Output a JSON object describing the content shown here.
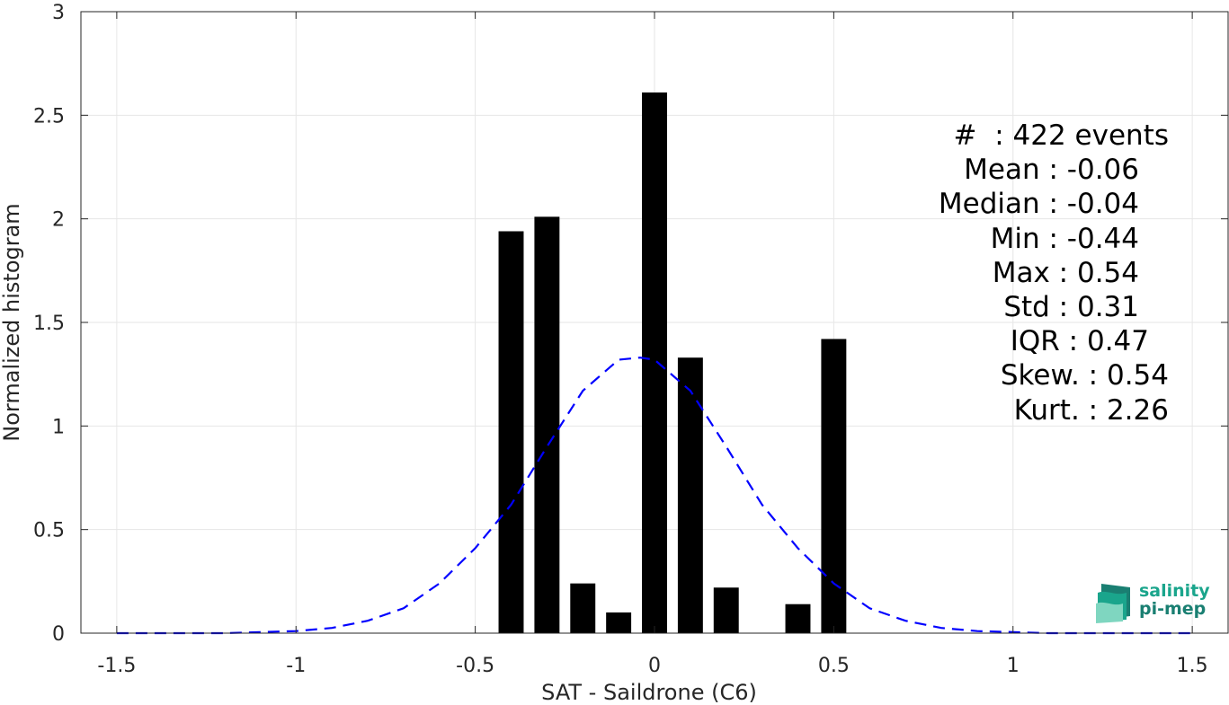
{
  "chart_data": {
    "type": "bar",
    "xlabel": "SAT - Saildrone (C6)",
    "ylabel": "Normalized histogram",
    "xlim": [
      -1.6,
      1.6
    ],
    "ylim": [
      0,
      3
    ],
    "xticks": [
      -1.5,
      -1,
      -0.5,
      0,
      0.5,
      1,
      1.5
    ],
    "xtick_labels": [
      "-1.5",
      "-1",
      "-0.5",
      "0",
      "0.5",
      "1",
      "1.5"
    ],
    "yticks": [
      0,
      0.5,
      1,
      1.5,
      2,
      2.5,
      3
    ],
    "ytick_labels": [
      "0",
      "0.5",
      "1",
      "1.5",
      "2",
      "2.5",
      "3"
    ],
    "grid": true,
    "bar_width": 0.07,
    "bar_color": "#000000",
    "bars": {
      "x": [
        -0.4,
        -0.3,
        -0.2,
        -0.1,
        0.0,
        0.1,
        0.2,
        0.3,
        0.4,
        0.5
      ],
      "values": [
        1.94,
        2.01,
        0.24,
        0.1,
        2.61,
        1.33,
        0.22,
        0.0,
        0.14,
        1.42
      ]
    },
    "fit_curve": {
      "style": "dashed",
      "color": "#0000ff",
      "x": [
        -1.5,
        -1.4,
        -1.3,
        -1.2,
        -1.1,
        -1.0,
        -0.9,
        -0.8,
        -0.7,
        -0.6,
        -0.5,
        -0.4,
        -0.3,
        -0.2,
        -0.1,
        -0.04,
        0.0,
        0.1,
        0.2,
        0.3,
        0.4,
        0.5,
        0.6,
        0.7,
        0.8,
        0.9,
        1.0,
        1.1,
        1.2,
        1.3,
        1.4,
        1.5
      ],
      "y": [
        0.0,
        0.0,
        0.0,
        0.0,
        0.005,
        0.01,
        0.025,
        0.06,
        0.12,
        0.24,
        0.41,
        0.62,
        0.9,
        1.17,
        1.32,
        1.33,
        1.32,
        1.17,
        0.9,
        0.62,
        0.41,
        0.24,
        0.12,
        0.06,
        0.025,
        0.01,
        0.005,
        0.0,
        0.0,
        0.0,
        0.0,
        0.0
      ]
    },
    "annotations": [
      "#  : 422 events",
      "Mean : -0.06",
      "Median : -0.04",
      "Min : -0.44",
      "Max : 0.54",
      "Std : 0.31",
      "IQR : 0.47",
      "Skew. : 0.54",
      "Kurt. : 2.26"
    ]
  },
  "logo": {
    "line1": "salinity",
    "line2": "pi-mep",
    "icon": "salinity-waves-icon",
    "colors": [
      "#1aa58c",
      "#1a7f72",
      "#7fd6c0"
    ]
  }
}
